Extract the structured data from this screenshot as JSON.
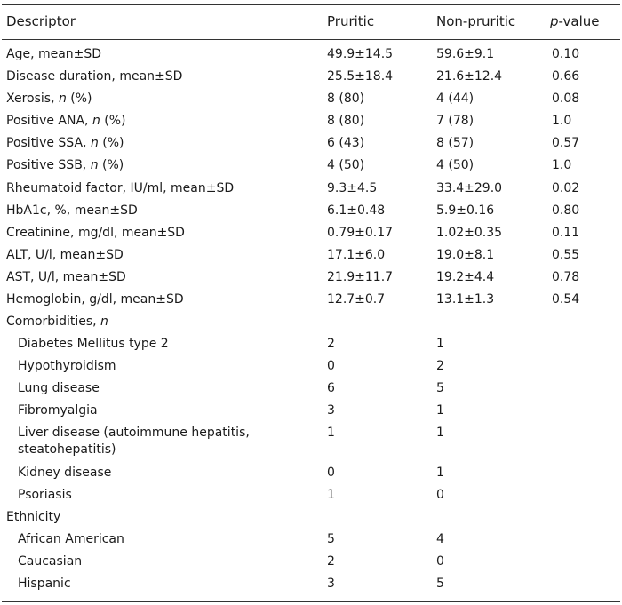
{
  "table": {
    "header": {
      "descriptor": "Descriptor",
      "pruritic": "Pruritic",
      "non_pruritic": "Non-pruritic",
      "p_value_italic": "p",
      "p_value_rest": "-value"
    },
    "rows": [
      {
        "label": "Age, mean±SD",
        "pruritic": "49.9±14.5",
        "non_pruritic": "59.6±9.1",
        "p": "0.10"
      },
      {
        "label": "Disease duration, mean±SD",
        "pruritic": "25.5±18.4",
        "non_pruritic": "21.6±12.4",
        "p": "0.66"
      },
      {
        "label": "Xerosis, ",
        "label_italic": "n",
        "label_suffix": " (%)",
        "pruritic": "8 (80)",
        "non_pruritic": "4 (44)",
        "p": "0.08"
      },
      {
        "label": "Positive ANA, ",
        "label_italic": "n",
        "label_suffix": " (%)",
        "pruritic": "8 (80)",
        "non_pruritic": "7 (78)",
        "p": "1.0"
      },
      {
        "label": "Positive SSA, ",
        "label_italic": "n",
        "label_suffix": " (%)",
        "pruritic": "6 (43)",
        "non_pruritic": "8 (57)",
        "p": "0.57"
      },
      {
        "label": "Positive SSB, ",
        "label_italic": "n",
        "label_suffix": " (%)",
        "pruritic": "4 (50)",
        "non_pruritic": "4 (50)",
        "p": "1.0"
      },
      {
        "label": "Rheumatoid factor, IU/ml, mean±SD",
        "pruritic": "9.3±4.5",
        "non_pruritic": "33.4±29.0",
        "p": "0.02"
      },
      {
        "label": "HbA1c, %, mean±SD",
        "pruritic": "6.1±0.48",
        "non_pruritic": "5.9±0.16",
        "p": "0.80"
      },
      {
        "label": "Creatinine, mg/dl, mean±SD",
        "pruritic": "0.79±0.17",
        "non_pruritic": "1.02±0.35",
        "p": "0.11"
      },
      {
        "label": "ALT, U/l, mean±SD",
        "pruritic": "17.1±6.0",
        "non_pruritic": "19.0±8.1",
        "p": "0.55"
      },
      {
        "label": "AST, U/l, mean±SD",
        "pruritic": "21.9±11.7",
        "non_pruritic": "19.2±4.4",
        "p": "0.78"
      },
      {
        "label": "Hemoglobin, g/dl, mean±SD",
        "pruritic": "12.7±0.7",
        "non_pruritic": "13.1±1.3",
        "p": "0.54"
      }
    ],
    "comorbidities": {
      "label": "Comorbidities, ",
      "label_italic": "n",
      "items": [
        {
          "label": "Diabetes Mellitus type 2",
          "pruritic": "2",
          "non_pruritic": "1"
        },
        {
          "label": "Hypothyroidism",
          "pruritic": "0",
          "non_pruritic": "2"
        },
        {
          "label": "Lung disease",
          "pruritic": "6",
          "non_pruritic": "5"
        },
        {
          "label": "Fibromyalgia",
          "pruritic": "3",
          "non_pruritic": "1"
        },
        {
          "label": "Liver disease (autoimmune hepatitis, steatohepatitis)",
          "pruritic": "1",
          "non_pruritic": "1"
        },
        {
          "label": "Kidney disease",
          "pruritic": "0",
          "non_pruritic": "1"
        },
        {
          "label": "Psoriasis",
          "pruritic": "1",
          "non_pruritic": "0"
        }
      ]
    },
    "ethnicity": {
      "label": "Ethnicity",
      "items": [
        {
          "label": "African American",
          "pruritic": "5",
          "non_pruritic": "4"
        },
        {
          "label": "Caucasian",
          "pruritic": "2",
          "non_pruritic": "0"
        },
        {
          "label": "Hispanic",
          "pruritic": "3",
          "non_pruritic": "5"
        }
      ]
    }
  }
}
